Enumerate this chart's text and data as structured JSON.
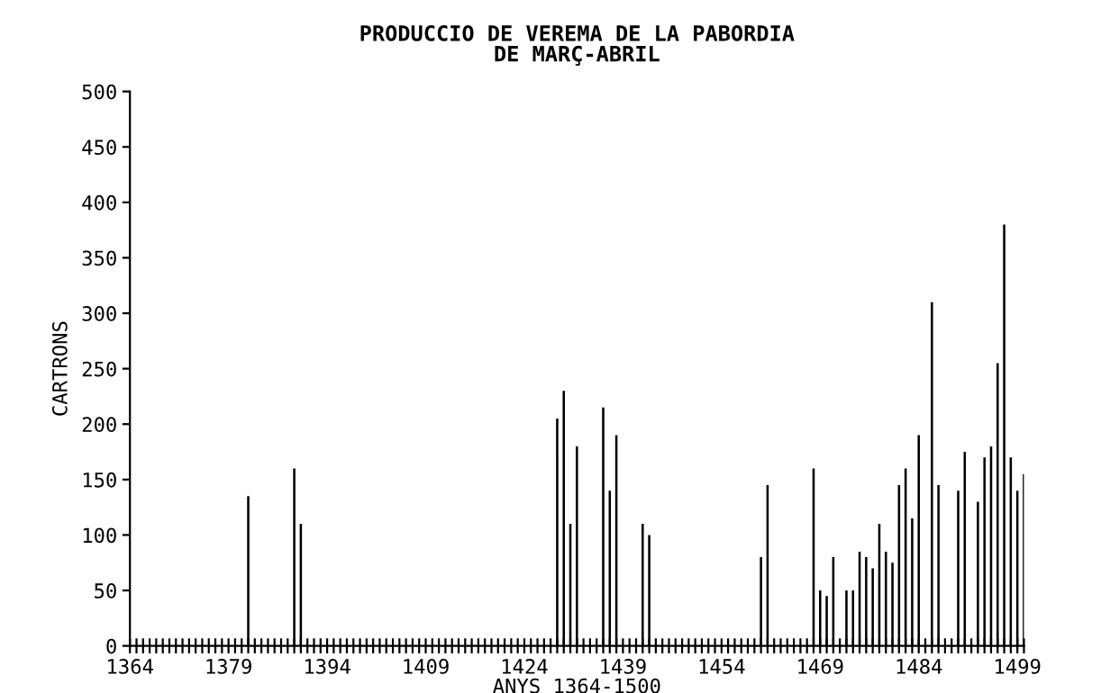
{
  "chart_data": {
    "type": "bar",
    "title": "PRODUCCIO DE VEREMA DE LA PABORDIA\nDE MARÇ-ABRIL",
    "xlabel": "ANYS 1364-1500",
    "ylabel": "CARTRONS",
    "x": [
      1382,
      1389,
      1390,
      1429,
      1430,
      1431,
      1432,
      1436,
      1437,
      1438,
      1442,
      1443,
      1460,
      1461,
      1468,
      1469,
      1470,
      1471,
      1473,
      1474,
      1475,
      1476,
      1477,
      1478,
      1479,
      1480,
      1481,
      1482,
      1483,
      1484,
      1486,
      1487,
      1490,
      1491,
      1493,
      1494,
      1495,
      1496,
      1497,
      1498,
      1499,
      1500
    ],
    "values": [
      135,
      160,
      110,
      205,
      230,
      110,
      180,
      215,
      140,
      190,
      110,
      100,
      80,
      145,
      160,
      50,
      45,
      80,
      50,
      50,
      85,
      80,
      70,
      110,
      85,
      75,
      145,
      160,
      115,
      190,
      310,
      145,
      140,
      175,
      130,
      170,
      180,
      255,
      380,
      170,
      140,
      155
    ],
    "color": "#000000",
    "xlim": [
      1364,
      1500
    ],
    "ylim": [
      0,
      500
    ],
    "yticks": [
      0,
      50,
      100,
      150,
      200,
      250,
      300,
      350,
      400,
      450,
      500
    ],
    "xticks": [
      1364,
      {
        "value": 1365,
        "label": null
      },
      {
        "value": 1366,
        "label": null
      },
      {
        "value": 1367,
        "label": null
      },
      {
        "value": 1368,
        "label": null
      },
      {
        "value": 1369,
        "label": null
      },
      {
        "value": 1370,
        "label": null
      },
      {
        "value": 1371,
        "label": null
      },
      {
        "value": 1372,
        "label": null
      },
      {
        "value": 1373,
        "label": null
      },
      {
        "value": 1374,
        "label": null
      },
      {
        "value": 1375,
        "label": null
      },
      {
        "value": 1376,
        "label": null
      },
      {
        "value": 1377,
        "label": null
      },
      {
        "value": 1378,
        "label": null
      },
      1379,
      {
        "value": 1380,
        "label": null
      },
      {
        "value": 1381,
        "label": null
      },
      {
        "value": 1382,
        "label": null
      },
      {
        "value": 1383,
        "label": null
      },
      {
        "value": 1384,
        "label": null
      },
      {
        "value": 1385,
        "label": null
      },
      {
        "value": 1386,
        "label": null
      },
      {
        "value": 1387,
        "label": null
      },
      {
        "value": 1388,
        "label": null
      },
      {
        "value": 1389,
        "label": null
      },
      {
        "value": 1390,
        "label": null
      },
      {
        "value": 1391,
        "label": null
      },
      {
        "value": 1392,
        "label": null
      },
      {
        "value": 1393,
        "label": null
      },
      1394,
      {
        "value": 1395,
        "label": null
      },
      {
        "value": 1396,
        "label": null
      },
      {
        "value": 1397,
        "label": null
      },
      {
        "value": 1398,
        "label": null
      },
      {
        "value": 1399,
        "label": null
      },
      {
        "value": 1400,
        "label": null
      },
      {
        "value": 1401,
        "label": null
      },
      {
        "value": 1402,
        "label": null
      },
      {
        "value": 1403,
        "label": null
      },
      {
        "value": 1404,
        "label": null
      },
      {
        "value": 1405,
        "label": null
      },
      {
        "value": 1406,
        "label": null
      },
      {
        "value": 1407,
        "label": null
      },
      {
        "value": 1408,
        "label": null
      },
      1409,
      {
        "value": 1410,
        "label": null
      },
      {
        "value": 1411,
        "label": null
      },
      {
        "value": 1412,
        "label": null
      },
      {
        "value": 1413,
        "label": null
      },
      {
        "value": 1414,
        "label": null
      },
      {
        "value": 1415,
        "label": null
      },
      {
        "value": 1416,
        "label": null
      },
      {
        "value": 1417,
        "label": null
      },
      {
        "value": 1418,
        "label": null
      },
      {
        "value": 1419,
        "label": null
      },
      {
        "value": 1420,
        "label": null
      },
      {
        "value": 1421,
        "label": null
      },
      {
        "value": 1422,
        "label": null
      },
      {
        "value": 1423,
        "label": null
      },
      1424,
      {
        "value": 1425,
        "label": null
      },
      {
        "value": 1426,
        "label": null
      },
      {
        "value": 1427,
        "label": null
      },
      {
        "value": 1428,
        "label": null
      },
      {
        "value": 1429,
        "label": null
      },
      {
        "value": 1430,
        "label": null
      },
      {
        "value": 1431,
        "label": null
      },
      {
        "value": 1432,
        "label": null
      },
      {
        "value": 1433,
        "label": null
      },
      {
        "value": 1434,
        "label": null
      },
      {
        "value": 1435,
        "label": null
      },
      {
        "value": 1436,
        "label": null
      },
      {
        "value": 1437,
        "label": null
      },
      {
        "value": 1438,
        "label": null
      },
      1439,
      {
        "value": 1440,
        "label": null
      },
      {
        "value": 1441,
        "label": null
      },
      {
        "value": 1442,
        "label": null
      },
      {
        "value": 1443,
        "label": null
      },
      {
        "value": 1444,
        "label": null
      },
      {
        "value": 1445,
        "label": null
      },
      {
        "value": 1446,
        "label": null
      },
      {
        "value": 1447,
        "label": null
      },
      {
        "value": 1448,
        "label": null
      },
      {
        "value": 1449,
        "label": null
      },
      {
        "value": 1450,
        "label": null
      },
      {
        "value": 1451,
        "label": null
      },
      {
        "value": 1452,
        "label": null
      },
      {
        "value": 1453,
        "label": null
      },
      1454,
      {
        "value": 1455,
        "label": null
      },
      {
        "value": 1456,
        "label": null
      },
      {
        "value": 1457,
        "label": null
      },
      {
        "value": 1458,
        "label": null
      },
      {
        "value": 1459,
        "label": null
      },
      {
        "value": 1460,
        "label": null
      },
      {
        "value": 1461,
        "label": null
      },
      {
        "value": 1462,
        "label": null
      },
      {
        "value": 1463,
        "label": null
      },
      {
        "value": 1464,
        "label": null
      },
      {
        "value": 1465,
        "label": null
      },
      {
        "value": 1466,
        "label": null
      },
      {
        "value": 1467,
        "label": null
      },
      {
        "value": 1468,
        "label": null
      },
      1469,
      {
        "value": 1470,
        "label": null
      },
      {
        "value": 1471,
        "label": null
      },
      {
        "value": 1472,
        "label": null
      },
      {
        "value": 1473,
        "label": null
      },
      {
        "value": 1474,
        "label": null
      },
      {
        "value": 1475,
        "label": null
      },
      {
        "value": 1476,
        "label": null
      },
      {
        "value": 1477,
        "label": null
      },
      {
        "value": 1478,
        "label": null
      },
      {
        "value": 1479,
        "label": null
      },
      {
        "value": 1480,
        "label": null
      },
      {
        "value": 1481,
        "label": null
      },
      {
        "value": 1482,
        "label": null
      },
      {
        "value": 1483,
        "label": null
      },
      1484,
      {
        "value": 1485,
        "label": null
      },
      {
        "value": 1486,
        "label": null
      },
      {
        "value": 1487,
        "label": null
      },
      {
        "value": 1488,
        "label": null
      },
      {
        "value": 1489,
        "label": null
      },
      {
        "value": 1490,
        "label": null
      },
      {
        "value": 1491,
        "label": null
      },
      {
        "value": 1492,
        "label": null
      },
      {
        "value": 1493,
        "label": null
      },
      {
        "value": 1494,
        "label": null
      },
      {
        "value": 1495,
        "label": null
      },
      {
        "value": 1496,
        "label": null
      },
      {
        "value": 1497,
        "label": null
      },
      {
        "value": 1498,
        "label": null
      },
      1499,
      {
        "value": 1500,
        "label": null
      }
    ],
    "grid": false
  }
}
